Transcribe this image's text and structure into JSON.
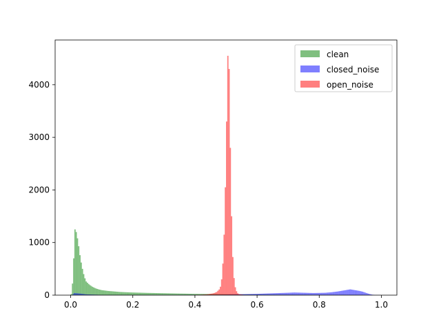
{
  "chart_data": {
    "type": "histogram",
    "title": "",
    "xlabel": "",
    "ylabel": "",
    "xlim": [
      -0.05,
      1.05
    ],
    "ylim": [
      0,
      4850
    ],
    "grid": false,
    "legend_position": "top-right",
    "x_ticks": [
      "0.0",
      "0.2",
      "0.4",
      "0.6",
      "0.8",
      "1.0"
    ],
    "y_ticks": [
      "0",
      "1000",
      "2000",
      "3000",
      "4000"
    ],
    "bin_width": 0.004,
    "series": [
      {
        "name": "clean",
        "color": "#008000",
        "x": [
          0.002,
          0.006,
          0.01,
          0.014,
          0.018,
          0.022,
          0.026,
          0.03,
          0.034,
          0.038,
          0.042,
          0.046,
          0.05,
          0.06,
          0.07,
          0.08,
          0.09,
          0.1,
          0.12,
          0.14,
          0.16,
          0.18,
          0.2,
          0.25,
          0.3,
          0.35,
          0.4,
          0.45,
          0.5,
          0.55,
          0.6,
          0.65,
          0.7,
          0.75,
          0.8,
          0.85,
          0.9,
          0.95
        ],
        "values": [
          20,
          220,
          700,
          1250,
          1200,
          1080,
          930,
          760,
          620,
          500,
          400,
          320,
          260,
          200,
          160,
          130,
          110,
          95,
          80,
          70,
          60,
          55,
          50,
          42,
          36,
          30,
          25,
          22,
          18,
          15,
          12,
          10,
          9,
          8,
          7,
          6,
          5,
          3
        ]
      },
      {
        "name": "closed_noise",
        "color": "#0000ff",
        "x": [
          0.01,
          0.03,
          0.05,
          0.1,
          0.2,
          0.3,
          0.4,
          0.45,
          0.5,
          0.55,
          0.6,
          0.65,
          0.7,
          0.72,
          0.75,
          0.78,
          0.8,
          0.82,
          0.84,
          0.86,
          0.88,
          0.89,
          0.9,
          0.91,
          0.92,
          0.93,
          0.94,
          0.95,
          0.96,
          0.97,
          0.98
        ],
        "values": [
          40,
          30,
          15,
          5,
          3,
          4,
          6,
          8,
          12,
          18,
          25,
          35,
          45,
          50,
          45,
          40,
          42,
          45,
          55,
          70,
          90,
          100,
          110,
          100,
          90,
          80,
          65,
          45,
          25,
          10,
          3
        ]
      },
      {
        "name": "open_noise",
        "color": "#ff0000",
        "x": [
          0.4,
          0.42,
          0.44,
          0.46,
          0.47,
          0.48,
          0.484,
          0.488,
          0.492,
          0.496,
          0.5,
          0.504,
          0.506,
          0.508,
          0.51,
          0.512,
          0.514,
          0.516,
          0.52,
          0.524,
          0.528,
          0.532,
          0.536,
          0.54,
          0.56,
          0.58,
          0.6
        ],
        "values": [
          5,
          8,
          15,
          35,
          60,
          120,
          200,
          400,
          800,
          1500,
          2600,
          4000,
          4550,
          4620,
          4300,
          3600,
          2800,
          2000,
          1000,
          450,
          200,
          100,
          50,
          20,
          5,
          3,
          1
        ]
      }
    ]
  }
}
